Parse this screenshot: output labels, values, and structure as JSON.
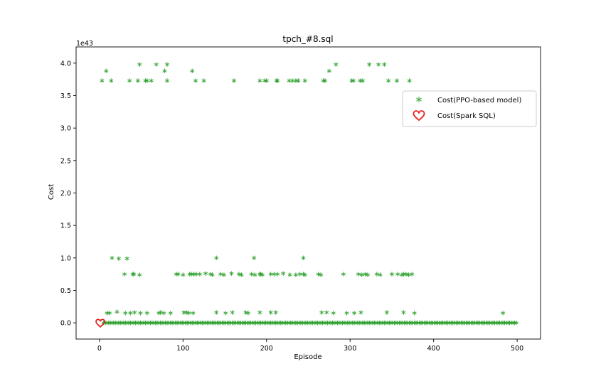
{
  "chart_data": {
    "type": "scatter",
    "title": "tpch_#8.sql",
    "xlabel": "Episode",
    "ylabel": "Cost",
    "offset_text": "1e43",
    "xlim": [
      -28,
      528
    ],
    "ylim": [
      -0.25,
      4.25
    ],
    "x_ticks": [
      0,
      100,
      200,
      300,
      400,
      500
    ],
    "x_tick_labels": [
      "0",
      "100",
      "200",
      "300",
      "400",
      "500"
    ],
    "y_ticks": [
      0.0,
      0.5,
      1.0,
      1.5,
      2.0,
      2.5,
      3.0,
      3.5,
      4.0
    ],
    "y_tick_labels": [
      "0.0",
      "0.5",
      "1.0",
      "1.5",
      "2.0",
      "2.5",
      "3.0",
      "3.5",
      "4.0"
    ],
    "grid": false,
    "legend_position": "upper-right",
    "series": [
      {
        "name": "Cost(PPO-based model)",
        "marker": "asterisk",
        "color": "#2ca02c",
        "points": [
          [
            3,
            3.73
          ],
          [
            8,
            3.88
          ],
          [
            14,
            3.73
          ],
          [
            48,
            3.98
          ],
          [
            36,
            3.73
          ],
          [
            46,
            3.73
          ],
          [
            55,
            3.73
          ],
          [
            57,
            3.73
          ],
          [
            62,
            3.73
          ],
          [
            68,
            3.98
          ],
          [
            78,
            3.88
          ],
          [
            81,
            3.98
          ],
          [
            81,
            3.73
          ],
          [
            111,
            3.88
          ],
          [
            115,
            3.73
          ],
          [
            125,
            3.73
          ],
          [
            161,
            3.73
          ],
          [
            192,
            3.73
          ],
          [
            198,
            3.73
          ],
          [
            200,
            3.73
          ],
          [
            212,
            3.73
          ],
          [
            213,
            3.73
          ],
          [
            227,
            3.73
          ],
          [
            231,
            3.73
          ],
          [
            235,
            3.73
          ],
          [
            238,
            3.73
          ],
          [
            246,
            3.73
          ],
          [
            268,
            3.73
          ],
          [
            270,
            3.73
          ],
          [
            275,
            3.88
          ],
          [
            283,
            3.98
          ],
          [
            302,
            3.73
          ],
          [
            304,
            3.73
          ],
          [
            312,
            3.73
          ],
          [
            315,
            3.73
          ],
          [
            323,
            3.98
          ],
          [
            334,
            3.98
          ],
          [
            341,
            3.98
          ],
          [
            346,
            3.73
          ],
          [
            356,
            3.73
          ],
          [
            371,
            3.73
          ],
          [
            15,
            1.0
          ],
          [
            23,
            0.99
          ],
          [
            33,
            0.99
          ],
          [
            140,
            1.0
          ],
          [
            185,
            1.0
          ],
          [
            244,
            1.0
          ],
          [
            30,
            0.75
          ],
          [
            40,
            0.75
          ],
          [
            41,
            0.75
          ],
          [
            48,
            0.74
          ],
          [
            92,
            0.75
          ],
          [
            94,
            0.75
          ],
          [
            100,
            0.74
          ],
          [
            108,
            0.75
          ],
          [
            110,
            0.75
          ],
          [
            113,
            0.75
          ],
          [
            116,
            0.75
          ],
          [
            120,
            0.75
          ],
          [
            127,
            0.76
          ],
          [
            133,
            0.75
          ],
          [
            135,
            0.74
          ],
          [
            145,
            0.75
          ],
          [
            149,
            0.74
          ],
          [
            158,
            0.76
          ],
          [
            167,
            0.75
          ],
          [
            170,
            0.74
          ],
          [
            182,
            0.75
          ],
          [
            186,
            0.74
          ],
          [
            192,
            0.75
          ],
          [
            193,
            0.75
          ],
          [
            195,
            0.74
          ],
          [
            205,
            0.75
          ],
          [
            209,
            0.75
          ],
          [
            213,
            0.75
          ],
          [
            220,
            0.76
          ],
          [
            228,
            0.74
          ],
          [
            235,
            0.74
          ],
          [
            240,
            0.75
          ],
          [
            244,
            0.75
          ],
          [
            246,
            0.74
          ],
          [
            262,
            0.75
          ],
          [
            265,
            0.74
          ],
          [
            292,
            0.75
          ],
          [
            310,
            0.75
          ],
          [
            314,
            0.74
          ],
          [
            318,
            0.75
          ],
          [
            321,
            0.74
          ],
          [
            332,
            0.75
          ],
          [
            336,
            0.74
          ],
          [
            350,
            0.75
          ],
          [
            357,
            0.75
          ],
          [
            362,
            0.74
          ],
          [
            364,
            0.75
          ],
          [
            367,
            0.75
          ],
          [
            370,
            0.74
          ],
          [
            374,
            0.75
          ],
          [
            9,
            0.15
          ],
          [
            12,
            0.15
          ],
          [
            21,
            0.17
          ],
          [
            31,
            0.15
          ],
          [
            37,
            0.15
          ],
          [
            42,
            0.16
          ],
          [
            49,
            0.15
          ],
          [
            57,
            0.15
          ],
          [
            71,
            0.15
          ],
          [
            73,
            0.16
          ],
          [
            77,
            0.15
          ],
          [
            85,
            0.15
          ],
          [
            101,
            0.16
          ],
          [
            104,
            0.16
          ],
          [
            107,
            0.15
          ],
          [
            112,
            0.15
          ],
          [
            140,
            0.16
          ],
          [
            151,
            0.15
          ],
          [
            159,
            0.16
          ],
          [
            175,
            0.16
          ],
          [
            178,
            0.15
          ],
          [
            192,
            0.16
          ],
          [
            205,
            0.16
          ],
          [
            211,
            0.16
          ],
          [
            266,
            0.16
          ],
          [
            272,
            0.16
          ],
          [
            280,
            0.15
          ],
          [
            296,
            0.15
          ],
          [
            305,
            0.15
          ],
          [
            313,
            0.16
          ],
          [
            344,
            0.16
          ],
          [
            364,
            0.16
          ],
          [
            377,
            0.15
          ],
          [
            483,
            0.15
          ]
        ],
        "baseline": {
          "x_from": 5,
          "x_to": 500,
          "step": 2,
          "y": 0.0
        }
      },
      {
        "name": "Cost(Spark SQL)",
        "marker": "heart",
        "color": "#e8231a",
        "points": [
          [
            1,
            0.0
          ]
        ]
      }
    ]
  }
}
